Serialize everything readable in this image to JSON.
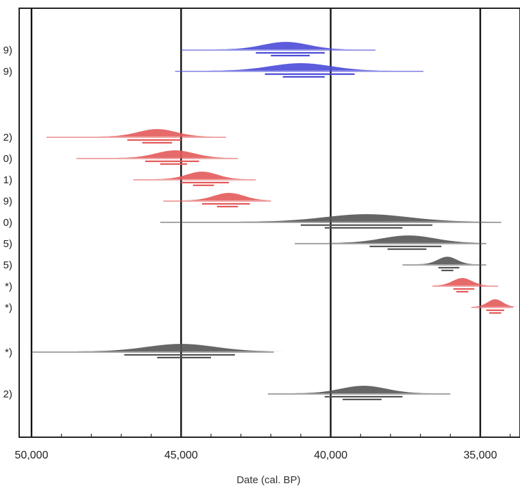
{
  "chart_data": {
    "type": "scatter",
    "xlabel": "Date (cal. BP)",
    "xlim": [
      50000,
      34000
    ],
    "x_reversed": true,
    "major_ticks": [
      50000,
      45000,
      40000,
      35000
    ],
    "tick_labels": [
      "50,000",
      "45,000",
      "40,000",
      "35,000"
    ],
    "minor_tick_step": 1000,
    "grid_lines_x": [
      50000,
      45000,
      40000,
      35000
    ],
    "colors": {
      "blue": "#4a4ad8",
      "red": "#e35a5a",
      "gray": "#555555",
      "grid": "#111111"
    },
    "rows": [
      {
        "label": "9)",
        "color": "blue",
        "peak": 41500,
        "width": 600,
        "thin": [
          45000,
          38500
        ],
        "thick1": [
          42500,
          40200
        ],
        "thick2": [
          42000,
          40700
        ]
      },
      {
        "label": "9)",
        "color": "blue",
        "peak": 41000,
        "width": 800,
        "thin": [
          45200,
          36900
        ],
        "thick1": [
          42200,
          39200
        ],
        "thick2": [
          41600,
          40200
        ]
      },
      {
        "label": "2)",
        "color": "red",
        "peak": 45800,
        "width": 500,
        "thin": [
          49500,
          43500
        ],
        "thick1": [
          46800,
          45000
        ],
        "thick2": [
          46300,
          45300
        ]
      },
      {
        "label": "0)",
        "color": "red",
        "peak": 45200,
        "width": 500,
        "thin": [
          48500,
          43100
        ],
        "thick1": [
          46200,
          44400
        ],
        "thick2": [
          45700,
          44800
        ]
      },
      {
        "label": "1)",
        "color": "red",
        "peak": 44300,
        "width": 400,
        "thin": [
          46600,
          42500
        ],
        "thick1": [
          45000,
          43400
        ],
        "thick2": [
          44600,
          43900
        ]
      },
      {
        "label": "9)",
        "color": "red",
        "peak": 43400,
        "width": 400,
        "thin": [
          45600,
          42000
        ],
        "thick1": [
          44300,
          42700
        ],
        "thick2": [
          43800,
          43100
        ]
      },
      {
        "label": "0)",
        "color": "gray",
        "peak": 38800,
        "width": 1100,
        "thin": [
          45700,
          34300
        ],
        "thick1": [
          41000,
          36600
        ],
        "thick2": [
          40200,
          37600
        ]
      },
      {
        "label": "5)",
        "color": "gray",
        "peak": 37400,
        "width": 700,
        "thin": [
          41200,
          34800
        ],
        "thick1": [
          38700,
          36300
        ],
        "thick2": [
          38100,
          36800
        ]
      },
      {
        "label": "5)",
        "color": "gray",
        "peak": 36100,
        "width": 250,
        "thin": [
          37600,
          34800
        ],
        "thick1": [
          36400,
          35700
        ],
        "thick2": [
          36300,
          35900
        ]
      },
      {
        "label": "*)",
        "color": "red",
        "peak": 35600,
        "width": 250,
        "thin": [
          36600,
          34400
        ],
        "thick1": [
          35900,
          35200
        ],
        "thick2": [
          35800,
          35400
        ]
      },
      {
        "label": "*)",
        "color": "red",
        "peak": 34500,
        "width": 200,
        "thin": [
          35300,
          33900
        ],
        "thick1": [
          34800,
          34200
        ],
        "thick2": [
          34700,
          34300
        ]
      },
      {
        "label": "*)",
        "color": "gray",
        "peak": 45000,
        "width": 900,
        "thin": [
          50000,
          41900
        ],
        "thick1": [
          46900,
          43200
        ],
        "thick2": [
          45800,
          44000
        ]
      },
      {
        "label": "2)",
        "color": "gray",
        "peak": 38900,
        "width": 600,
        "thin": [
          42100,
          36000
        ],
        "thick1": [
          40200,
          37600
        ],
        "thick2": [
          39600,
          38300
        ]
      }
    ]
  }
}
